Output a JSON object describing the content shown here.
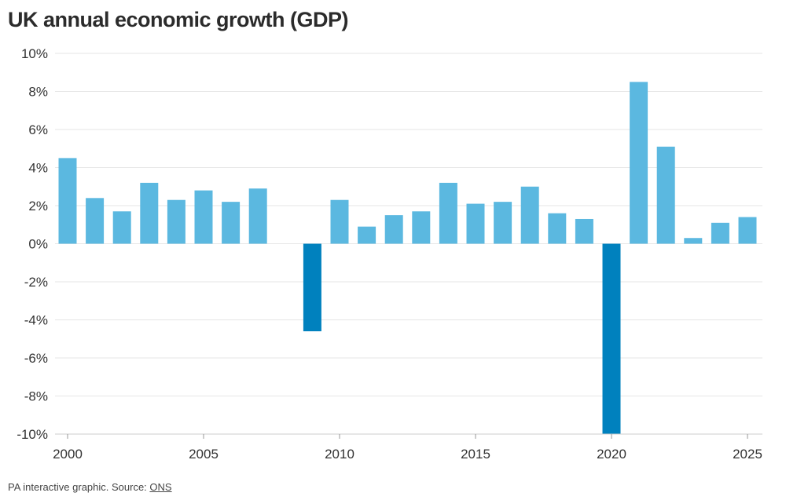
{
  "title": "UK annual economic growth (GDP)",
  "footer": {
    "text": "PA interactive graphic. Source: ",
    "source_link": "ONS"
  },
  "colors": {
    "positive": "#5bb8e0",
    "negative": "#0081be",
    "grid": "#e6e6e6",
    "axis": "#cccccc"
  },
  "chart_data": {
    "type": "bar",
    "x": [
      2000,
      2001,
      2002,
      2003,
      2004,
      2005,
      2006,
      2007,
      2009,
      2010,
      2011,
      2012,
      2013,
      2014,
      2015,
      2016,
      2017,
      2018,
      2019,
      2020,
      2021,
      2022,
      2023,
      2024,
      2025
    ],
    "values": [
      4.5,
      2.4,
      1.7,
      3.2,
      2.3,
      2.8,
      2.2,
      2.9,
      -4.6,
      2.3,
      0.9,
      1.5,
      1.7,
      3.2,
      2.1,
      2.2,
      3.0,
      1.6,
      1.3,
      -10.0,
      8.5,
      5.1,
      0.3,
      1.1,
      1.4
    ],
    "ylim": [
      -10,
      10
    ],
    "yticks": [
      10,
      8,
      6,
      4,
      2,
      0,
      -2,
      -4,
      -6,
      -8,
      -10
    ],
    "ytick_labels": [
      "10%",
      "8%",
      "6%",
      "4%",
      "2%",
      "0%",
      "-2%",
      "-4%",
      "-6%",
      "-8%",
      "-10%"
    ],
    "xticks": [
      2000,
      2005,
      2010,
      2015,
      2020,
      2025
    ],
    "xtick_labels": [
      "2000",
      "2005",
      "2010",
      "2015",
      "2020",
      "2025"
    ],
    "grid": true,
    "legend": false,
    "title": "UK annual economic growth (GDP)",
    "xlabel": "",
    "ylabel": ""
  }
}
